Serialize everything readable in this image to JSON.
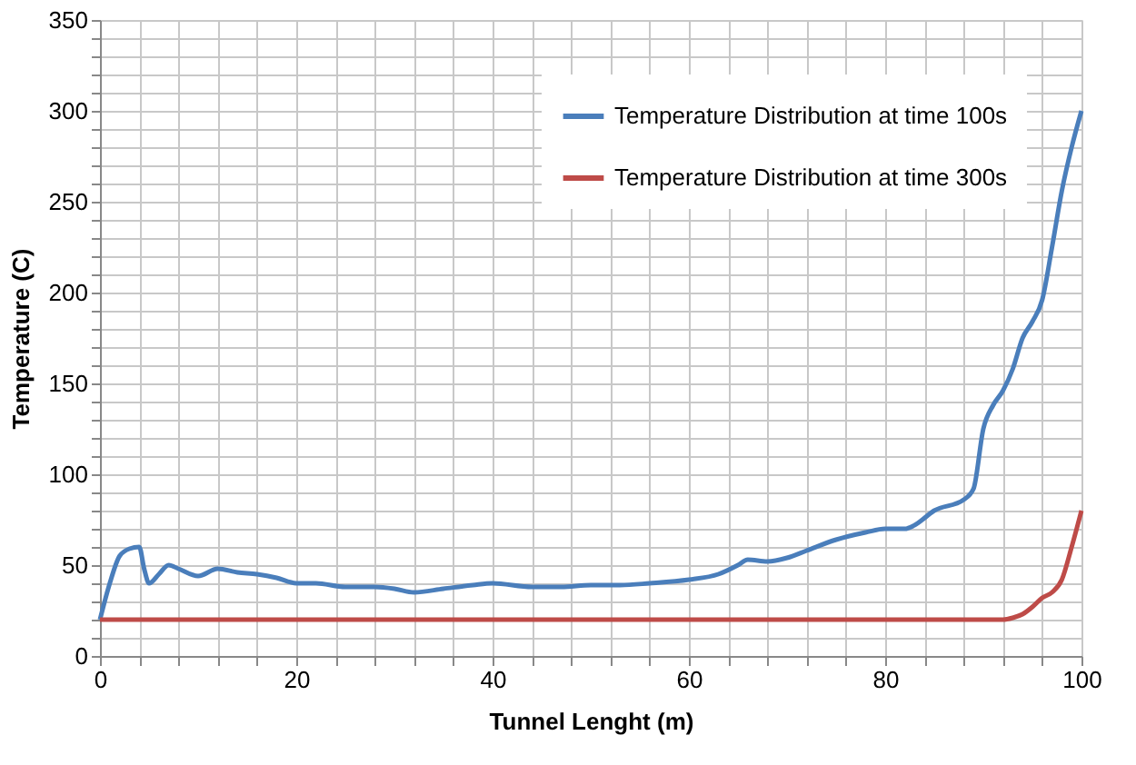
{
  "chart_data": {
    "type": "line",
    "xlabel": "Tunnel Lenght (m)",
    "ylabel": "Temperature (C)",
    "xlim": [
      0,
      100
    ],
    "ylim": [
      0,
      350
    ],
    "xticks": [
      0,
      {
        "value": 4,
        "label": null
      },
      {
        "value": 8,
        "label": null
      },
      {
        "value": 12,
        "label": null
      },
      {
        "value": 16,
        "label": null
      },
      20,
      {
        "value": 24,
        "label": null
      },
      {
        "value": 28,
        "label": null
      },
      {
        "value": 32,
        "label": null
      },
      {
        "value": 36,
        "label": null
      },
      40,
      {
        "value": 44,
        "label": null
      },
      {
        "value": 48,
        "label": null
      },
      {
        "value": 52,
        "label": null
      },
      {
        "value": 56,
        "label": null
      },
      60,
      {
        "value": 64,
        "label": null
      },
      {
        "value": 68,
        "label": null
      },
      {
        "value": 72,
        "label": null
      },
      {
        "value": 76,
        "label": null
      },
      80,
      {
        "value": 84,
        "label": null
      },
      {
        "value": 88,
        "label": null
      },
      {
        "value": 92,
        "label": null
      },
      {
        "value": 96,
        "label": null
      },
      100
    ],
    "yticks": [
      0,
      {
        "value": 10,
        "label": null
      },
      {
        "value": 20,
        "label": null
      },
      {
        "value": 30,
        "label": null
      },
      {
        "value": 40,
        "label": null
      },
      50,
      {
        "value": 60,
        "label": null
      },
      {
        "value": 70,
        "label": null
      },
      {
        "value": 80,
        "label": null
      },
      {
        "value": 90,
        "label": null
      },
      100,
      {
        "value": 110,
        "label": null
      },
      {
        "value": 120,
        "label": null
      },
      {
        "value": 130,
        "label": null
      },
      {
        "value": 140,
        "label": null
      },
      150,
      {
        "value": 160,
        "label": null
      },
      {
        "value": 170,
        "label": null
      },
      {
        "value": 180,
        "label": null
      },
      {
        "value": 190,
        "label": null
      },
      200,
      {
        "value": 210,
        "label": null
      },
      {
        "value": 220,
        "label": null
      },
      {
        "value": 230,
        "label": null
      },
      {
        "value": 240,
        "label": null
      },
      250,
      {
        "value": 260,
        "label": null
      },
      {
        "value": 270,
        "label": null
      },
      {
        "value": 280,
        "label": null
      },
      {
        "value": 290,
        "label": null
      },
      300,
      {
        "value": 310,
        "label": null
      },
      {
        "value": 320,
        "label": null
      },
      {
        "value": 330,
        "label": null
      },
      {
        "value": 340,
        "label": null
      },
      350
    ],
    "grid": true,
    "legend": "top right",
    "marker": "none",
    "line_style": "solid",
    "series": [
      {
        "name": "Temperature Distribution at time 100s",
        "color": "#4a7ebb",
        "x": [
          0,
          1,
          2,
          3,
          4,
          4.5,
          5,
          6,
          7,
          8,
          10,
          12,
          14,
          16,
          18,
          20,
          22,
          25,
          28,
          30,
          32,
          35,
          38,
          40,
          44,
          47,
          50,
          53,
          56,
          60,
          63,
          65,
          66,
          68,
          70,
          72,
          75,
          78,
          80,
          82,
          83,
          85,
          88,
          89,
          90,
          91,
          92,
          93,
          94,
          95,
          96,
          97,
          98,
          99,
          100
        ],
        "values": [
          20,
          40,
          55,
          59,
          60,
          48,
          40,
          45,
          50,
          48,
          44,
          48,
          46,
          45,
          43,
          40,
          40,
          38,
          38,
          37,
          35,
          37,
          39,
          40,
          38,
          38,
          39,
          39,
          40,
          42,
          45,
          50,
          53,
          52,
          54,
          58,
          64,
          68,
          70,
          70,
          72,
          80,
          86,
          92,
          125,
          138,
          146,
          158,
          175,
          184,
          196,
          225,
          256,
          280,
          300
        ]
      },
      {
        "name": "Temperature Distribution at time 300s",
        "color": "#be4b48",
        "x": [
          0,
          20,
          40,
          60,
          80,
          92,
          93,
          94,
          95,
          96,
          97,
          98,
          99,
          100
        ],
        "values": [
          20,
          20,
          20,
          20,
          20,
          20,
          21,
          23,
          27,
          32,
          35,
          42,
          60,
          80
        ]
      }
    ]
  }
}
